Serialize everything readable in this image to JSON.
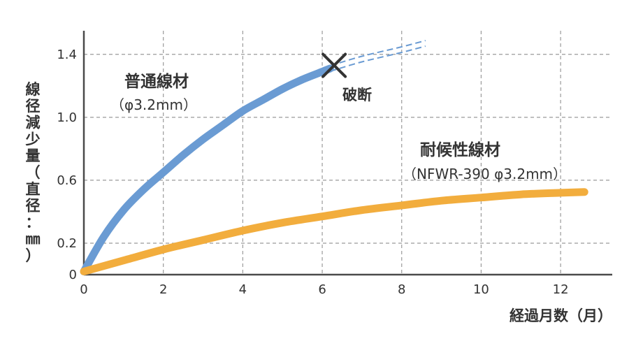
{
  "chart_data": {
    "type": "line",
    "xlabel": "経過月数（月）",
    "ylabel": "線径減少量（直径：㎜）",
    "xlim": [
      0,
      13.3
    ],
    "ylim": [
      0,
      1.55
    ],
    "x_ticks": [
      "0",
      "2",
      "4",
      "6",
      "8",
      "10",
      "12"
    ],
    "x_tick_values": [
      0,
      2,
      4,
      6,
      8,
      10,
      12
    ],
    "y_ticks": [
      "0",
      "0.2",
      "0.6",
      "1.0",
      "1.4"
    ],
    "y_tick_values": [
      0,
      0.2,
      0.6,
      1.0,
      1.4
    ],
    "grid": true,
    "series": [
      {
        "name": "普通線材",
        "sub": "（φ3.2mm）",
        "color": "#6a9bd3",
        "x": [
          0,
          0.5,
          1,
          1.5,
          2,
          2.5,
          3,
          3.5,
          4,
          4.5,
          5,
          5.5,
          6,
          6.2
        ],
        "y": [
          0.02,
          0.24,
          0.41,
          0.54,
          0.65,
          0.76,
          0.86,
          0.95,
          1.04,
          1.11,
          1.18,
          1.24,
          1.29,
          1.31
        ],
        "extrapolated_x": [
          6.2,
          7,
          8,
          8.6
        ],
        "extrapolated_y": [
          1.31,
          1.37,
          1.43,
          1.47
        ],
        "annotation": "破断",
        "annotation_x": 6.3,
        "annotation_y": 1.33
      },
      {
        "name": "耐候性線材",
        "sub": "（NFWR-390 φ3.2mm）",
        "color": "#f2ad3d",
        "x": [
          0,
          1,
          2,
          3,
          4,
          5,
          6,
          7,
          8,
          9,
          10,
          11,
          12,
          12.6
        ],
        "y": [
          0.02,
          0.09,
          0.16,
          0.22,
          0.28,
          0.33,
          0.37,
          0.41,
          0.44,
          0.47,
          0.49,
          0.51,
          0.52,
          0.525
        ]
      }
    ]
  }
}
